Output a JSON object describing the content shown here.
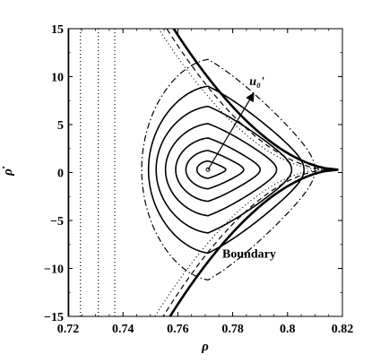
{
  "chart_data": {
    "type": "line",
    "xlabel": "ρ",
    "ylabel": "ρ̇",
    "xlim": [
      0.72,
      0.82
    ],
    "ylim": [
      -15,
      15
    ],
    "x_ticks": [
      0.72,
      0.74,
      0.76,
      0.78,
      0.8,
      0.82
    ],
    "x_tick_labels": [
      "0.72",
      "0.74",
      "0.76",
      "0.78",
      "0.8",
      "0.82"
    ],
    "y_ticks": [
      -15,
      -10,
      -5,
      0,
      5,
      10,
      15
    ],
    "y_tick_labels": [
      "−15",
      "−10",
      "−5",
      "0",
      "5",
      "10",
      "15"
    ],
    "grid": false,
    "legend": "none",
    "center": {
      "x": 0.771,
      "y": 0.3
    },
    "orbits": [
      {
        "style": "solid",
        "tip": 0.7775,
        "half_height": 0.9
      },
      {
        "style": "solid",
        "tip": 0.784,
        "half_height": 2.0
      },
      {
        "style": "solid",
        "tip": 0.79,
        "half_height": 3.3
      },
      {
        "style": "solid",
        "tip": 0.796,
        "half_height": 4.8
      },
      {
        "style": "solid",
        "tip": 0.8015,
        "half_height": 6.6
      },
      {
        "style": "solid",
        "tip": 0.806,
        "half_height": 8.7
      },
      {
        "style": "dashdot",
        "tip": 0.81,
        "half_height": 11.5
      }
    ],
    "open_curves": [
      {
        "style": "dotted",
        "tip": 0.8125,
        "x_at_edge": 0.751
      },
      {
        "style": "dashed",
        "tip": 0.815,
        "x_at_edge": 0.754
      },
      {
        "style": "solid-thick",
        "tip": 0.8185,
        "x_at_edge": 0.7565
      }
    ],
    "vertical_lines": [
      {
        "style": "solid-thick",
        "x": 0.72
      },
      {
        "style": "dotted",
        "x": 0.7245
      },
      {
        "style": "dotted",
        "x": 0.731
      },
      {
        "style": "dotted",
        "x": 0.737
      }
    ],
    "annotations": [
      {
        "text": "u₀'",
        "kind": "arrow",
        "from": {
          "x": 0.771,
          "y": 0.3
        },
        "to": {
          "x": 0.7875,
          "y": 8.2
        }
      },
      {
        "text": "Boundary",
        "kind": "label",
        "at": {
          "x": 0.786,
          "y": -8.9
        }
      }
    ]
  }
}
